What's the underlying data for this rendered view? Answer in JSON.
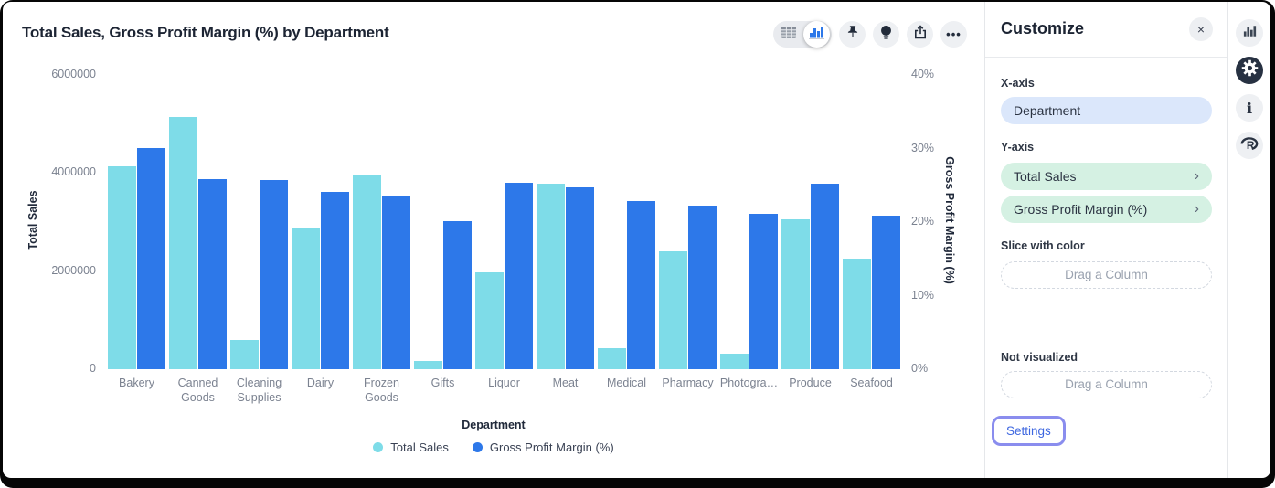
{
  "header": {
    "title": "Total Sales, Gross Profit Margin (%) by Department",
    "toolbar_icons": [
      "table-view",
      "chart-view-selected",
      "pin",
      "lightbulb",
      "share",
      "more-ellipsis"
    ],
    "more_label": "•••"
  },
  "customize_panel": {
    "title": "Customize",
    "close_icon": "×",
    "x_axis": {
      "label": "X-axis",
      "pill": "Department",
      "pill_color": "#dbe7fb"
    },
    "y_axis": {
      "label": "Y-axis",
      "pills": [
        {
          "text": "Total Sales",
          "chevron": "›",
          "color": "#d5f1e3"
        },
        {
          "text": "Gross Profit Margin (%)",
          "chevron": "›",
          "color": "#d5f1e3"
        }
      ]
    },
    "slice_with_color": {
      "label": "Slice with color",
      "dropzone": "Drag a Column"
    },
    "not_visualized": {
      "label": "Not visualized",
      "dropzone": "Drag a Column"
    },
    "settings_button": "Settings",
    "settings_text_color": "#3e67e0",
    "settings_ring_color": "#8a8dee"
  },
  "side_toolbar": {
    "icons": [
      "bar-chart",
      "settings-gear",
      "info",
      "r-logo"
    ],
    "active": "settings-gear"
  },
  "chart_data": {
    "type": "bar",
    "title": "Total Sales, Gross Profit Margin (%) by Department",
    "categories": [
      "Bakery",
      "Canned Goods",
      "Cleaning Supplies",
      "Dairy",
      "Frozen Goods",
      "Gifts",
      "Liquor",
      "Meat",
      "Medical",
      "Pharmacy",
      "Photogra…",
      "Produce",
      "Seafood"
    ],
    "series": [
      {
        "name": "Total Sales",
        "axis": "left",
        "color": "#7edce8",
        "values": [
          4130000,
          5140000,
          600000,
          2890000,
          3970000,
          170000,
          1970000,
          3790000,
          430000,
          2400000,
          320000,
          3060000,
          2260000
        ]
      },
      {
        "name": "Gross Profit Margin (%)",
        "axis": "right",
        "color": "#2d78e9",
        "values": [
          30.0,
          25.8,
          25.7,
          24.1,
          23.5,
          20.1,
          25.3,
          24.7,
          22.9,
          22.2,
          21.1,
          25.2,
          20.9
        ]
      }
    ],
    "left_axis": {
      "label": "Total Sales",
      "ticks": [
        "0",
        "2000000",
        "4000000",
        "6000000"
      ],
      "max": 6000000
    },
    "right_axis": {
      "label": "Gross Profit Margin (%)",
      "ticks": [
        "0%",
        "10%",
        "20%",
        "30%",
        "40%"
      ],
      "max": 40
    },
    "xlabel": "Department",
    "legend_position": "bottom-center",
    "grid": false
  }
}
